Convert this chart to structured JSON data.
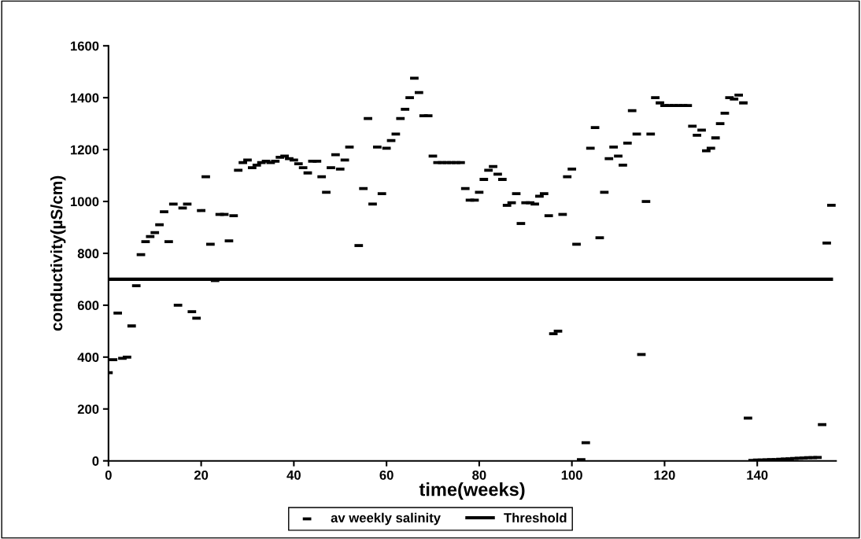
{
  "chart_data": {
    "type": "scatter",
    "xlabel": "time(weeks)",
    "ylabel": "conductivity(µS/cm)",
    "xlim": [
      0,
      157
    ],
    "ylim": [
      0,
      1600
    ],
    "xticks": [
      0,
      20,
      40,
      60,
      80,
      100,
      120,
      140
    ],
    "yticks": [
      0,
      200,
      400,
      600,
      800,
      1000,
      1200,
      1400,
      1600
    ],
    "grid": false,
    "legend": "bottom",
    "series": [
      {
        "name": "av weekly salinity",
        "color": "#000000",
        "x": [
          0,
          1,
          2,
          3,
          4,
          5,
          6,
          7,
          8,
          9,
          10,
          11,
          12,
          13,
          14,
          15,
          16,
          17,
          18,
          19,
          20,
          21,
          22,
          23,
          24,
          25,
          26,
          27,
          28,
          29,
          30,
          31,
          32,
          33,
          34,
          35,
          36,
          37,
          38,
          39,
          40,
          41,
          42,
          43,
          44,
          45,
          46,
          47,
          48,
          49,
          50,
          51,
          52,
          54,
          55,
          56,
          57,
          58,
          59,
          60,
          61,
          62,
          63,
          64,
          65,
          66,
          67,
          68,
          69,
          70,
          71,
          72,
          73,
          74,
          75,
          76,
          77,
          78,
          79,
          80,
          81,
          82,
          83,
          84,
          85,
          86,
          87,
          88,
          89,
          90,
          91,
          92,
          93,
          94,
          95,
          96,
          97,
          98,
          99,
          100,
          101,
          102,
          103,
          104,
          105,
          106,
          107,
          108,
          109,
          110,
          111,
          112,
          113,
          114,
          115,
          116,
          117,
          118,
          119,
          120,
          121,
          122,
          123,
          124,
          125,
          126,
          127,
          128,
          129,
          130,
          131,
          132,
          133,
          134,
          135,
          136,
          137,
          138,
          139,
          140,
          141,
          142,
          143,
          144,
          145,
          146,
          147,
          148,
          149,
          150,
          151,
          152,
          153,
          154,
          155,
          156
        ],
        "values": [
          340,
          390,
          570,
          395,
          400,
          520,
          675,
          795,
          845,
          865,
          880,
          910,
          960,
          845,
          990,
          600,
          975,
          990,
          575,
          550,
          965,
          1095,
          835,
          695,
          950,
          950,
          848,
          945,
          1120,
          1150,
          1160,
          1130,
          1140,
          1150,
          1155,
          1150,
          1155,
          1170,
          1175,
          1165,
          1160,
          1145,
          1130,
          1110,
          1155,
          1155,
          1095,
          1035,
          1130,
          1180,
          1125,
          1160,
          1210,
          830,
          1050,
          1320,
          990,
          1210,
          1030,
          1205,
          1235,
          1260,
          1320,
          1355,
          1400,
          1475,
          1420,
          1330,
          1330,
          1175,
          1150,
          1150,
          1150,
          1150,
          1150,
          1150,
          1050,
          1005,
          1005,
          1035,
          1085,
          1120,
          1135,
          1105,
          1085,
          985,
          995,
          1030,
          915,
          995,
          995,
          990,
          1020,
          1030,
          945,
          490,
          500,
          950,
          1095,
          1125,
          835,
          5,
          70,
          1205,
          1285,
          860,
          1035,
          1165,
          1210,
          1175,
          1140,
          1225,
          1350,
          1260,
          410,
          1000,
          1260,
          1400,
          1380,
          1370,
          1370,
          1370,
          1370,
          1370,
          1370,
          1290,
          1255,
          1275,
          1195,
          1205,
          1245,
          1300,
          1340,
          1400,
          1395,
          1410,
          1380,
          165,
          2,
          3,
          3,
          4,
          5,
          5,
          6,
          7,
          8,
          9,
          10,
          11,
          12,
          12,
          13,
          140,
          840,
          985
        ]
      },
      {
        "name": "Threshold",
        "type": "line",
        "color": "#000000",
        "x": [
          0,
          156
        ],
        "values": [
          700,
          700
        ]
      }
    ]
  }
}
